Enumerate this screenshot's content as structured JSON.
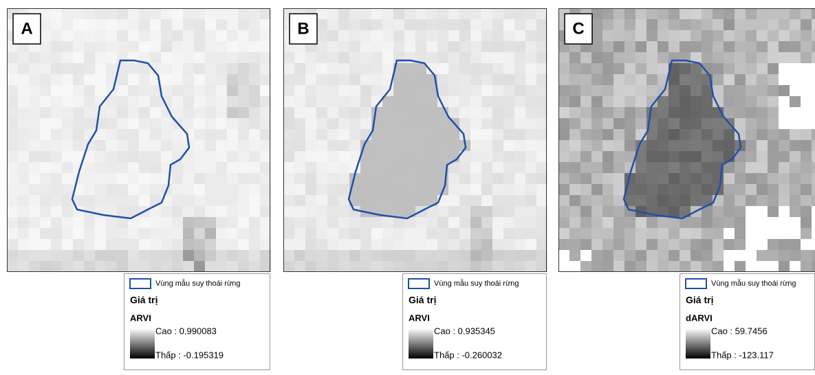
{
  "panels": [
    {
      "label": "A",
      "legend": {
        "polygon": "Vùng mẫu suy thoái rừng",
        "heading": "Giá trị",
        "index": "ARVI",
        "high": "Cao : 0.990083",
        "low": "Thấp : -0.195319"
      }
    },
    {
      "label": "B",
      "legend": {
        "polygon": "Vùng mẫu suy thoái rừng",
        "heading": "Giá trị",
        "index": "ARVI",
        "high": "Cao : 0.935345",
        "low": "Thấp : -0.260032"
      }
    },
    {
      "label": "C",
      "legend": {
        "polygon": "Vùng mẫu suy thoái rừng",
        "heading": "Giá trị",
        "index": "dARVI",
        "high": "Cao : 59.7456",
        "low": "Thấp : -123.117"
      }
    }
  ]
}
